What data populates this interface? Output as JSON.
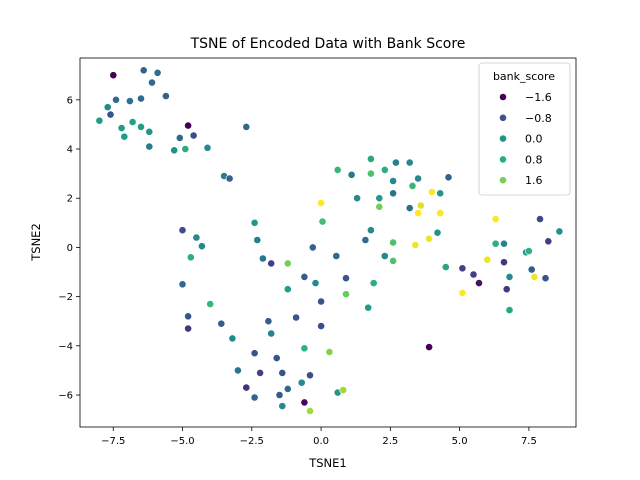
{
  "chart_data": {
    "type": "scatter",
    "title": "TSNE of Encoded Data with Bank Score",
    "xlabel": "TSNE1",
    "ylabel": "TSNE2",
    "xlim": [
      -8.7,
      9.2
    ],
    "ylim": [
      -7.3,
      7.7
    ],
    "xticks": [
      -7.5,
      -5.0,
      -2.5,
      0.0,
      2.5,
      5.0,
      7.5
    ],
    "xtick_labels": [
      "−7.5",
      "−5.0",
      "−2.5",
      "0.0",
      "2.5",
      "5.0",
      "7.5"
    ],
    "yticks": [
      -6,
      -4,
      -2,
      0,
      2,
      4,
      6
    ],
    "ytick_labels": [
      "−6",
      "−4",
      "−2",
      "0",
      "2",
      "4",
      "6"
    ],
    "grid": false,
    "legend": {
      "title": "bank_score",
      "placement": "top-right",
      "entries": [
        {
          "label": "−1.6",
          "color": "#440154"
        },
        {
          "label": "−0.8",
          "color": "#3b528b"
        },
        {
          "label": "0.0",
          "color": "#21918c"
        },
        {
          "label": "0.8",
          "color": "#27ad81"
        },
        {
          "label": "1.6",
          "color": "#7ad151"
        }
      ]
    },
    "color_scale": {
      "min": -2.0,
      "max": 2.2,
      "stops": [
        "#440154",
        "#482878",
        "#3e4989",
        "#31688e",
        "#26828e",
        "#1f9e89",
        "#35b779",
        "#6ece58",
        "#b5de2b",
        "#fde725"
      ]
    },
    "points": [
      {
        "x": -7.5,
        "y": 7.0,
        "c": -2.0
      },
      {
        "x": -6.4,
        "y": 7.2,
        "c": -0.7
      },
      {
        "x": -5.9,
        "y": 7.1,
        "c": -0.5
      },
      {
        "x": -6.1,
        "y": 6.7,
        "c": -0.6
      },
      {
        "x": -7.4,
        "y": 6.0,
        "c": -0.6
      },
      {
        "x": -6.9,
        "y": 5.95,
        "c": -0.5
      },
      {
        "x": -6.5,
        "y": 6.05,
        "c": -0.6
      },
      {
        "x": -5.6,
        "y": 6.15,
        "c": -0.7
      },
      {
        "x": -7.7,
        "y": 5.7,
        "c": 0.0
      },
      {
        "x": -7.6,
        "y": 5.4,
        "c": -0.9
      },
      {
        "x": -8.0,
        "y": 5.15,
        "c": 0.3
      },
      {
        "x": -7.2,
        "y": 4.85,
        "c": 0.3
      },
      {
        "x": -6.8,
        "y": 5.1,
        "c": 0.4
      },
      {
        "x": -6.5,
        "y": 4.9,
        "c": 0.3
      },
      {
        "x": -6.2,
        "y": 4.7,
        "c": 0.2
      },
      {
        "x": -7.1,
        "y": 4.5,
        "c": 0.3
      },
      {
        "x": -6.2,
        "y": 4.1,
        "c": -0.3
      },
      {
        "x": -5.1,
        "y": 4.45,
        "c": -0.6
      },
      {
        "x": -4.8,
        "y": 4.95,
        "c": -2.0
      },
      {
        "x": -4.6,
        "y": 4.55,
        "c": -1.0
      },
      {
        "x": -5.3,
        "y": 3.95,
        "c": 0.1
      },
      {
        "x": -4.9,
        "y": 4.0,
        "c": 0.6
      },
      {
        "x": -4.1,
        "y": 4.05,
        "c": 0.0
      },
      {
        "x": -2.7,
        "y": 4.9,
        "c": -0.6
      },
      {
        "x": -3.5,
        "y": 2.9,
        "c": -0.2
      },
      {
        "x": -3.3,
        "y": 2.8,
        "c": -0.7
      },
      {
        "x": -5.0,
        "y": 0.7,
        "c": -1.0
      },
      {
        "x": -4.5,
        "y": 0.4,
        "c": 0.0
      },
      {
        "x": -4.3,
        "y": 0.05,
        "c": 0.0
      },
      {
        "x": -4.7,
        "y": -0.4,
        "c": 0.6
      },
      {
        "x": -5.0,
        "y": -1.5,
        "c": -0.6
      },
      {
        "x": -4.0,
        "y": -2.3,
        "c": 0.8
      },
      {
        "x": -4.8,
        "y": -2.8,
        "c": -0.9
      },
      {
        "x": -4.8,
        "y": -3.3,
        "c": -1.3
      },
      {
        "x": -3.6,
        "y": -3.1,
        "c": -0.8
      },
      {
        "x": -3.2,
        "y": -3.7,
        "c": 0.0
      },
      {
        "x": -2.4,
        "y": 1.0,
        "c": 0.2
      },
      {
        "x": -2.3,
        "y": 0.3,
        "c": -0.2
      },
      {
        "x": -2.1,
        "y": -0.45,
        "c": -0.4
      },
      {
        "x": -1.8,
        "y": -0.65,
        "c": -1.2
      },
      {
        "x": -1.2,
        "y": -0.65,
        "c": 1.3
      },
      {
        "x": -1.2,
        "y": -1.7,
        "c": 0.3
      },
      {
        "x": -1.9,
        "y": -3.0,
        "c": -0.8
      },
      {
        "x": -1.8,
        "y": -3.5,
        "c": -0.1
      },
      {
        "x": -1.6,
        "y": -4.5,
        "c": -0.9
      },
      {
        "x": -2.4,
        "y": -4.3,
        "c": -0.9
      },
      {
        "x": -3.0,
        "y": -5.0,
        "c": -0.4
      },
      {
        "x": -2.7,
        "y": -5.7,
        "c": -1.4
      },
      {
        "x": -2.4,
        "y": -6.1,
        "c": -0.7
      },
      {
        "x": -2.2,
        "y": -5.1,
        "c": -1.2
      },
      {
        "x": -1.4,
        "y": -5.1,
        "c": -0.9
      },
      {
        "x": -1.5,
        "y": -6.0,
        "c": -0.8
      },
      {
        "x": -1.4,
        "y": -6.45,
        "c": 0.0
      },
      {
        "x": -1.2,
        "y": -5.75,
        "c": -0.6
      },
      {
        "x": -0.9,
        "y": -2.85,
        "c": -0.9
      },
      {
        "x": -0.6,
        "y": -1.2,
        "c": -0.8
      },
      {
        "x": -0.6,
        "y": -4.1,
        "c": 0.7
      },
      {
        "x": -0.7,
        "y": -5.5,
        "c": 0.0
      },
      {
        "x": -0.6,
        "y": -6.3,
        "c": -1.9
      },
      {
        "x": -0.4,
        "y": -6.65,
        "c": 1.6
      },
      {
        "x": -0.4,
        "y": -5.2,
        "c": -1.0
      },
      {
        "x": -0.3,
        "y": 0.0,
        "c": -0.7
      },
      {
        "x": -0.2,
        "y": -1.45,
        "c": 0.0
      },
      {
        "x": 0.0,
        "y": -2.2,
        "c": -0.9
      },
      {
        "x": 0.0,
        "y": -3.2,
        "c": -1.0
      },
      {
        "x": 0.0,
        "y": 1.8,
        "c": 2.2
      },
      {
        "x": 0.05,
        "y": 1.05,
        "c": 0.9
      },
      {
        "x": 0.3,
        "y": -4.25,
        "c": 1.4
      },
      {
        "x": 0.6,
        "y": -5.9,
        "c": 0.2
      },
      {
        "x": 0.8,
        "y": -5.8,
        "c": 1.6
      },
      {
        "x": 0.6,
        "y": 3.15,
        "c": 0.8
      },
      {
        "x": 1.1,
        "y": 2.95,
        "c": -0.3
      },
      {
        "x": 0.55,
        "y": -0.35,
        "c": -0.6
      },
      {
        "x": 0.9,
        "y": -1.25,
        "c": -0.9
      },
      {
        "x": 0.9,
        "y": -1.9,
        "c": 1.2
      },
      {
        "x": 1.3,
        "y": 2.0,
        "c": 0.0
      },
      {
        "x": 1.6,
        "y": 0.3,
        "c": -0.5
      },
      {
        "x": 1.8,
        "y": 0.7,
        "c": 0.0
      },
      {
        "x": 1.8,
        "y": 3.0,
        "c": 1.0
      },
      {
        "x": 1.8,
        "y": 3.6,
        "c": 0.5
      },
      {
        "x": 2.1,
        "y": 2.0,
        "c": 0.3
      },
      {
        "x": 2.1,
        "y": 1.65,
        "c": 1.3
      },
      {
        "x": 2.3,
        "y": 3.15,
        "c": 0.6
      },
      {
        "x": 1.9,
        "y": -1.45,
        "c": 0.6
      },
      {
        "x": 1.7,
        "y": -2.45,
        "c": 0.3
      },
      {
        "x": 2.3,
        "y": -0.35,
        "c": 0.0
      },
      {
        "x": 2.6,
        "y": 0.2,
        "c": 1.0
      },
      {
        "x": 2.6,
        "y": -0.55,
        "c": 1.0
      },
      {
        "x": 2.6,
        "y": 2.7,
        "c": 0.0
      },
      {
        "x": 2.7,
        "y": 3.45,
        "c": -0.2
      },
      {
        "x": 3.2,
        "y": 3.45,
        "c": 0.0
      },
      {
        "x": 3.3,
        "y": 2.5,
        "c": 0.8
      },
      {
        "x": 3.5,
        "y": 2.8,
        "c": 0.0
      },
      {
        "x": 2.6,
        "y": 2.2,
        "c": -0.4
      },
      {
        "x": 3.2,
        "y": 1.6,
        "c": -0.5
      },
      {
        "x": 3.5,
        "y": 1.4,
        "c": 2.2
      },
      {
        "x": 3.6,
        "y": 1.7,
        "c": 2.0
      },
      {
        "x": 3.4,
        "y": 0.1,
        "c": 2.1
      },
      {
        "x": 3.9,
        "y": 0.35,
        "c": 2.1
      },
      {
        "x": 4.0,
        "y": 2.25,
        "c": 2.2
      },
      {
        "x": 4.2,
        "y": 0.6,
        "c": 0.2
      },
      {
        "x": 4.3,
        "y": 1.4,
        "c": 2.2
      },
      {
        "x": 4.3,
        "y": 2.2,
        "c": 0.2
      },
      {
        "x": 4.6,
        "y": 2.85,
        "c": -0.7
      },
      {
        "x": 4.5,
        "y": -0.8,
        "c": 0.5
      },
      {
        "x": 3.9,
        "y": -4.05,
        "c": -2.0
      },
      {
        "x": 5.1,
        "y": -0.85,
        "c": -1.2
      },
      {
        "x": 5.1,
        "y": -1.85,
        "c": 2.2
      },
      {
        "x": 5.5,
        "y": -1.1,
        "c": -1.2
      },
      {
        "x": 5.7,
        "y": -1.45,
        "c": -1.8
      },
      {
        "x": 6.0,
        "y": -0.5,
        "c": 2.1
      },
      {
        "x": 6.3,
        "y": 1.15,
        "c": 2.2
      },
      {
        "x": 6.3,
        "y": 0.15,
        "c": 0.6
      },
      {
        "x": 6.6,
        "y": -0.6,
        "c": -1.3
      },
      {
        "x": 6.7,
        "y": -1.7,
        "c": -1.3
      },
      {
        "x": 6.6,
        "y": 0.15,
        "c": -0.1
      },
      {
        "x": 6.8,
        "y": -1.2,
        "c": 0.0
      },
      {
        "x": 6.8,
        "y": -2.55,
        "c": 0.5
      },
      {
        "x": 7.4,
        "y": -0.2,
        "c": 0.2
      },
      {
        "x": 7.5,
        "y": -0.15,
        "c": 0.7
      },
      {
        "x": 7.6,
        "y": -0.9,
        "c": -0.8
      },
      {
        "x": 7.7,
        "y": -1.2,
        "c": 2.1
      },
      {
        "x": 7.9,
        "y": 1.15,
        "c": -1.1
      },
      {
        "x": 8.2,
        "y": 0.25,
        "c": -1.2
      },
      {
        "x": 8.1,
        "y": -1.25,
        "c": -0.9
      },
      {
        "x": 8.6,
        "y": 0.65,
        "c": 0.1
      }
    ]
  }
}
